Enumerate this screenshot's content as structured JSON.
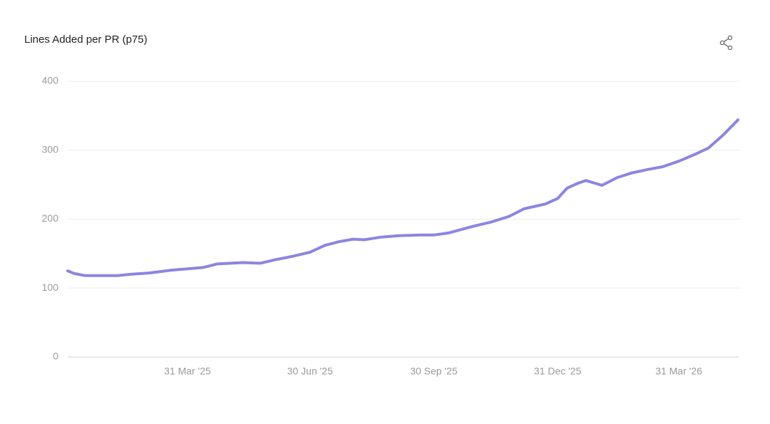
{
  "chart_data": {
    "type": "line",
    "title": "Lines Added per PR (p75)",
    "x": [
      "2025-01-01",
      "2025-01-06",
      "2025-01-14",
      "2025-01-27",
      "2025-02-07",
      "2025-02-17",
      "2025-03-03",
      "2025-03-19",
      "2025-03-31",
      "2025-04-12",
      "2025-04-22",
      "2025-05-11",
      "2025-05-24",
      "2025-06-04",
      "2025-06-17",
      "2025-06-30",
      "2025-07-11",
      "2025-07-21",
      "2025-08-01",
      "2025-08-09",
      "2025-08-22",
      "2025-09-04",
      "2025-09-20",
      "2025-09-30",
      "2025-10-11",
      "2025-10-30",
      "2025-11-12",
      "2025-11-25",
      "2025-12-06",
      "2025-12-22",
      "2025-12-31",
      "2026-01-07",
      "2026-01-15",
      "2026-01-21",
      "2026-02-02",
      "2026-02-13",
      "2026-02-24",
      "2026-03-08",
      "2026-03-19",
      "2026-03-31",
      "2026-04-12",
      "2026-04-22",
      "2026-05-03",
      "2026-05-14"
    ],
    "series": [
      {
        "name": "Lines Added per PR (p75)",
        "color": "#8b86e0",
        "values": [
          125,
          121,
          118,
          118,
          118,
          120,
          122,
          126,
          128,
          130,
          135,
          137,
          136,
          141,
          146,
          152,
          162,
          167,
          171,
          170,
          174,
          176,
          177,
          177,
          180,
          190,
          196,
          204,
          215,
          222,
          230,
          245,
          252,
          256,
          249,
          260,
          267,
          272,
          276,
          284,
          294,
          303,
          322,
          344
        ]
      }
    ],
    "xlim": [
      "2025-01-01",
      "2026-05-15"
    ],
    "xticks": [
      {
        "value": "2025-03-31",
        "label": "31 Mar '25"
      },
      {
        "value": "2025-06-30",
        "label": "30 Jun '25"
      },
      {
        "value": "2025-09-30",
        "label": "30 Sep '25"
      },
      {
        "value": "2025-12-31",
        "label": "31 Dec '25"
      },
      {
        "value": "2026-03-31",
        "label": "31 Mar '26"
      }
    ],
    "ylim": [
      0,
      400
    ],
    "yticks": [
      0,
      100,
      200,
      300,
      400
    ],
    "grid": true
  }
}
